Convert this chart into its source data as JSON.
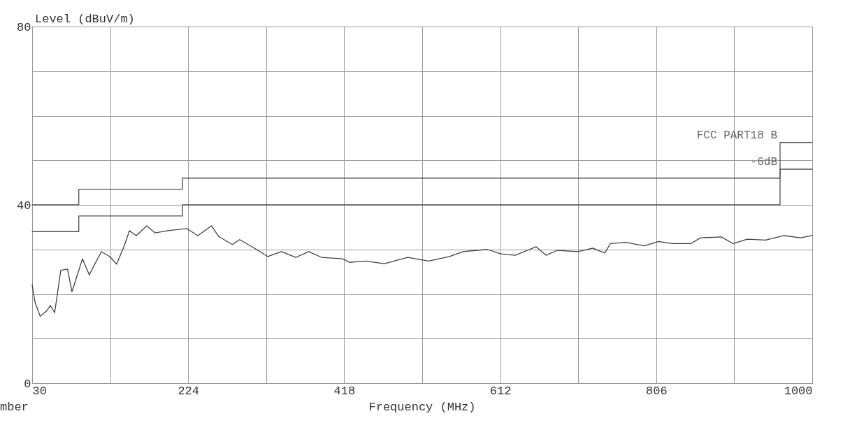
{
  "chart_data": {
    "type": "line",
    "xlabel": "Frequency (MHz)",
    "ylabel": "Level (dBuV/m)",
    "xlim": [
      30,
      1000
    ],
    "ylim": [
      0,
      80
    ],
    "xticks": [
      30,
      {
        "value": 127,
        "label": null
      },
      224,
      {
        "value": 321,
        "label": null
      },
      418,
      {
        "value": 515,
        "label": null
      },
      612,
      {
        "value": 709,
        "label": null
      },
      806,
      {
        "value": 903,
        "label": null
      },
      1000
    ],
    "yticks": [
      0,
      {
        "value": 10,
        "label": null
      },
      {
        "value": 20,
        "label": null
      },
      {
        "value": 30,
        "label": null
      },
      40,
      {
        "value": 50,
        "label": null
      },
      {
        "value": 60,
        "label": null
      },
      {
        "value": 70,
        "label": null
      },
      80
    ],
    "grid": true,
    "legend": false,
    "marker": "none",
    "line_style": "solid",
    "series": [
      {
        "name": "FCC PART18 B",
        "type": "step",
        "color": "#505050",
        "x": [
          30,
          88,
          217,
          960,
          1000
        ],
        "values": [
          40,
          43.5,
          46,
          54,
          54
        ]
      },
      {
        "name": "-6dB",
        "type": "step",
        "color": "#505050",
        "x": [
          30,
          88,
          217,
          960,
          1000
        ],
        "values": [
          34,
          37.5,
          40,
          48,
          48
        ]
      },
      {
        "type": "line",
        "color": "#404040",
        "x": [
          30,
          33.5,
          40,
          48,
          52.6,
          58,
          65.6,
          74,
          79.5,
          92.6,
          101,
          116,
          126.5,
          135,
          144,
          151,
          159.5,
          172.5,
          183,
          198.6,
          222,
          236,
          253,
          262,
          279,
          288,
          309,
          323,
          340,
          357.7,
          374,
          390,
          416,
          424.6,
          444.6,
          468,
          497,
          523,
          549,
          566,
          596,
          613,
          630.6,
          656.7,
          669,
          683,
          709,
          727,
          742,
          749,
          768,
          791,
          809,
          826,
          849,
          861,
          887,
          901.5,
          919,
          942,
          965,
          985.8,
          1000
        ],
        "values": [
          22,
          18.2,
          15,
          16.2,
          17.4,
          15.8,
          25.3,
          25.6,
          20.5,
          27.9,
          24.3,
          29.5,
          28.4,
          26.7,
          30.6,
          34.2,
          33.1,
          35.3,
          33.7,
          34.2,
          34.7,
          33.1,
          35.3,
          32.9,
          31.1,
          32.2,
          30,
          28.4,
          29.5,
          28.2,
          29.5,
          28.2,
          27.9,
          27.1,
          27.4,
          26.8,
          28.2,
          27.4,
          28.4,
          29.5,
          30,
          29,
          28.7,
          30.6,
          28.7,
          29.8,
          29.5,
          30.3,
          29.2,
          31.3,
          31.6,
          30.8,
          31.8,
          31.3,
          31.3,
          32.6,
          32.8,
          31.3,
          32.3,
          32.1,
          33.1,
          32.6,
          33.1
        ]
      }
    ],
    "annotations": [
      "mber"
    ]
  }
}
